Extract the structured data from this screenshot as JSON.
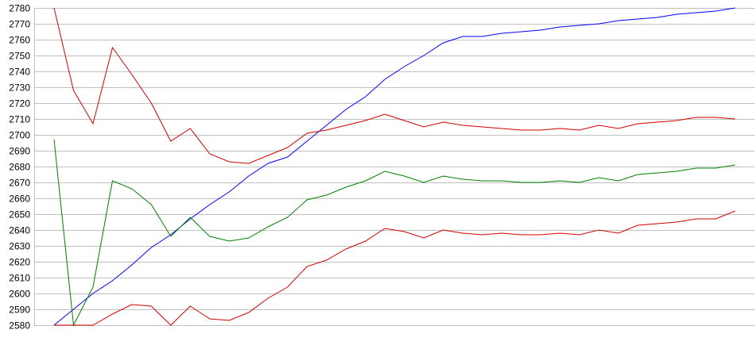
{
  "chart_data": {
    "type": "line",
    "title": "",
    "xlabel": "",
    "ylabel": "",
    "ylim": [
      2580,
      2780
    ],
    "yticks": [
      2580,
      2590,
      2600,
      2610,
      2620,
      2630,
      2640,
      2650,
      2660,
      2670,
      2680,
      2690,
      2700,
      2710,
      2720,
      2730,
      2740,
      2750,
      2760,
      2770,
      2780
    ],
    "grid": true,
    "legend": "none",
    "x": [
      1,
      2,
      3,
      4,
      5,
      6,
      7,
      8,
      9,
      10,
      11,
      12,
      13,
      14,
      15,
      16,
      17,
      18,
      19,
      20,
      21,
      22,
      23,
      24,
      25,
      26,
      27,
      28,
      29,
      30,
      31,
      32,
      33,
      34,
      35,
      36
    ],
    "series": [
      {
        "color": "#0000ff",
        "values": [
          2580,
          2590,
          2600,
          2608,
          2618,
          2629,
          2637,
          2647,
          2656,
          2664,
          2674,
          2682,
          2686,
          2696,
          2706,
          2716,
          2724,
          2735,
          2743,
          2750,
          2758,
          2762,
          2762,
          2764,
          2765,
          2766,
          2768,
          2769,
          2770,
          2772,
          2773,
          2774,
          2776,
          2777,
          2778,
          2780
        ]
      },
      {
        "color": "#d00000",
        "values": [
          2780,
          2728,
          2707,
          2755,
          2738,
          2720,
          2696,
          2704,
          2688,
          2683,
          2682,
          2687,
          2692,
          2701,
          2703,
          2706,
          2709,
          2713,
          2709,
          2705,
          2708,
          2706,
          2705,
          2704,
          2703,
          2703,
          2704,
          2703,
          2706,
          2704,
          2707,
          2708,
          2709,
          2711,
          2711,
          2710
        ]
      },
      {
        "color": "#008000",
        "values": [
          2697,
          2580,
          2604,
          2671,
          2666,
          2656,
          2636,
          2648,
          2636,
          2633,
          2635,
          2642,
          2648,
          2659,
          2662,
          2667,
          2671,
          2677,
          2674,
          2670,
          2674,
          2672,
          2671,
          2671,
          2670,
          2670,
          2671,
          2670,
          2673,
          2671,
          2675,
          2676,
          2677,
          2679,
          2679,
          2681
        ]
      },
      {
        "color": "#d00000",
        "values": [
          2580,
          2580,
          2580,
          2587,
          2593,
          2592,
          2580,
          2592,
          2584,
          2583,
          2588,
          2597,
          2604,
          2617,
          2621,
          2628,
          2633,
          2641,
          2639,
          2635,
          2640,
          2638,
          2637,
          2638,
          2637,
          2637,
          2638,
          2637,
          2640,
          2638,
          2643,
          2644,
          2645,
          2647,
          2647,
          2652
        ]
      }
    ]
  }
}
